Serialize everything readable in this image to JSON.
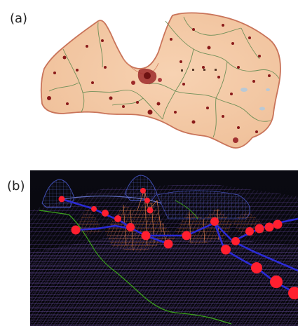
{
  "panels": {
    "a": {
      "label": "(a)"
    },
    "b": {
      "label": "(b)"
    }
  },
  "colors": {
    "background": "#ffffff",
    "map_fill": "#f3c8a2",
    "map_border": "#c9745a",
    "map_region_lines": "#6f8f58",
    "map_city_dots": "#8a1a1a",
    "terrain_background": "#050508",
    "terrain_mesh_purple": "#6a4ca8",
    "terrain_mesh_orange": "#d9713f",
    "terrain_path_blue": "#2b2bd6",
    "terrain_nodes_red": "#ff1f2f",
    "terrain_contour_green": "#3aa21a"
  }
}
